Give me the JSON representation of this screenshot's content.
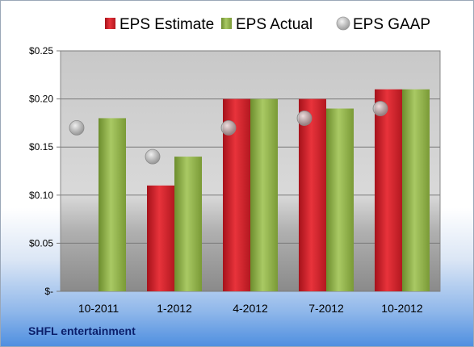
{
  "company": "SHFL entertainment",
  "chart_data": {
    "type": "bar",
    "categories": [
      "10-2011",
      "1-2012",
      "4-2012",
      "7-2012",
      "10-2012"
    ],
    "series": [
      {
        "name": "EPS Estimate",
        "type": "bar",
        "color": "#d0202a",
        "values": [
          null,
          0.11,
          0.2,
          0.2,
          0.21
        ]
      },
      {
        "name": "EPS Actual",
        "type": "bar",
        "color": "#8db043",
        "values": [
          0.18,
          0.14,
          0.2,
          0.19,
          0.21
        ]
      },
      {
        "name": "EPS GAAP",
        "type": "scatter",
        "color": "#a9a9a9",
        "values": [
          0.17,
          0.14,
          0.17,
          0.18,
          0.19
        ]
      }
    ],
    "ylim": [
      0,
      0.25
    ],
    "yticks": [
      0,
      0.05,
      0.1,
      0.15,
      0.2,
      0.25
    ],
    "ytick_labels": [
      "$-",
      "$0.05",
      "$0.10",
      "$0.15",
      "$0.20",
      "$0.25"
    ],
    "grid": true,
    "legend_position": "top"
  }
}
